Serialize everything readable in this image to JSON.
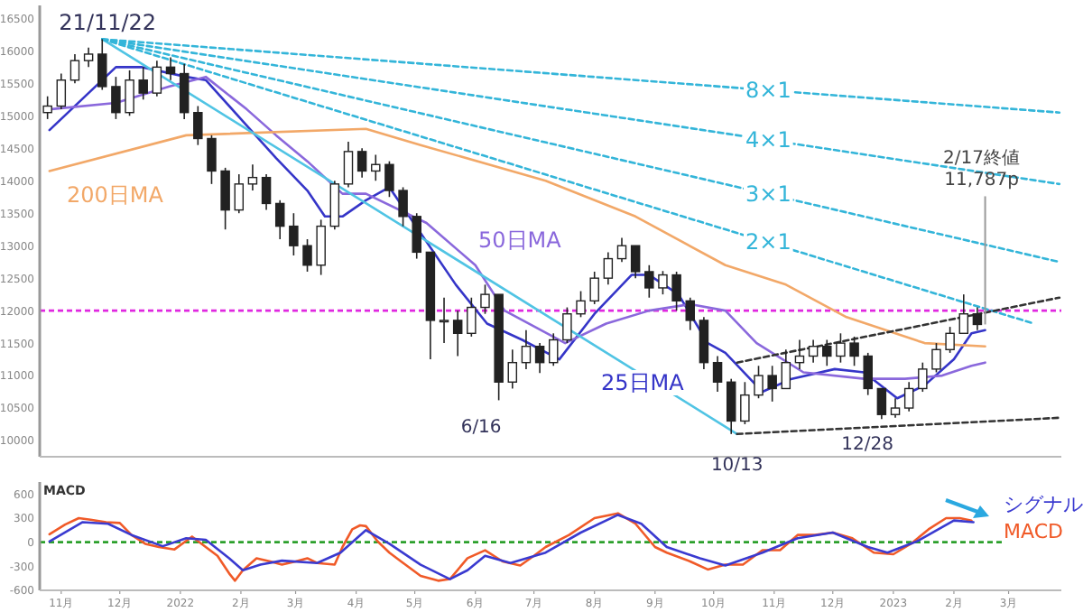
{
  "chart_data": [
    {
      "type": "candlestick",
      "x": [
        "2021-10-25",
        "2021-11-01",
        "2021-11-08",
        "2021-11-15",
        "2021-11-22",
        "2021-11-29",
        "2021-12-06",
        "2021-12-13",
        "2021-12-20",
        "2021-12-27",
        "2022-01-03",
        "2022-01-10",
        "2022-01-17",
        "2022-01-24",
        "2022-01-31",
        "2022-02-07",
        "2022-02-14",
        "2022-02-21",
        "2022-02-28",
        "2022-03-07",
        "2022-03-14",
        "2022-03-21",
        "2022-03-28",
        "2022-04-04",
        "2022-04-11",
        "2022-04-18",
        "2022-04-25",
        "2022-05-02",
        "2022-05-09",
        "2022-05-16",
        "2022-05-23",
        "2022-05-30",
        "2022-06-06",
        "2022-06-13",
        "2022-06-20",
        "2022-06-27",
        "2022-07-04",
        "2022-07-11",
        "2022-07-18",
        "2022-07-25",
        "2022-08-01",
        "2022-08-08",
        "2022-08-15",
        "2022-08-22",
        "2022-08-29",
        "2022-09-05",
        "2022-09-12",
        "2022-09-19",
        "2022-09-26",
        "2022-10-03",
        "2022-10-10",
        "2022-10-17",
        "2022-10-24",
        "2022-10-31",
        "2022-11-07",
        "2022-11-14",
        "2022-11-21",
        "2022-11-28",
        "2022-12-05",
        "2022-12-12",
        "2022-12-19",
        "2022-12-26",
        "2023-01-02",
        "2023-01-09",
        "2023-01-16",
        "2023-01-23",
        "2023-01-30",
        "2023-02-06",
        "2023-02-13"
      ],
      "ohlc": [
        [
          15050,
          15300,
          14950,
          15150
        ],
        [
          15150,
          15650,
          15100,
          15550
        ],
        [
          15550,
          15950,
          15500,
          15850
        ],
        [
          15850,
          16050,
          15750,
          15950
        ],
        [
          15950,
          16180,
          15400,
          15450
        ],
        [
          15450,
          15600,
          14950,
          15050
        ],
        [
          15050,
          15700,
          15000,
          15550
        ],
        [
          15550,
          15750,
          15250,
          15350
        ],
        [
          15350,
          15850,
          15300,
          15750
        ],
        [
          15750,
          15900,
          15550,
          15650
        ],
        [
          15650,
          15800,
          14950,
          15050
        ],
        [
          15050,
          15150,
          14550,
          14650
        ],
        [
          14650,
          14700,
          13950,
          14150
        ],
        [
          14150,
          14200,
          13250,
          13550
        ],
        [
          13550,
          14100,
          13500,
          13950
        ],
        [
          13950,
          14250,
          13850,
          14050
        ],
        [
          14050,
          14100,
          13550,
          13650
        ],
        [
          13650,
          13700,
          13100,
          13300
        ],
        [
          13300,
          13500,
          12850,
          13000
        ],
        [
          13000,
          13100,
          12600,
          12700
        ],
        [
          12700,
          13400,
          12550,
          13300
        ],
        [
          13300,
          14000,
          13250,
          13950
        ],
        [
          13950,
          14600,
          13900,
          14450
        ],
        [
          14450,
          14500,
          14050,
          14150
        ],
        [
          14150,
          14400,
          14000,
          14250
        ],
        [
          14250,
          14300,
          13750,
          13850
        ],
        [
          13850,
          13900,
          13300,
          13450
        ],
        [
          13450,
          13500,
          12800,
          12900
        ],
        [
          12900,
          12900,
          11250,
          11850
        ],
        [
          11850,
          12200,
          11500,
          11850
        ],
        [
          11850,
          12000,
          11300,
          11650
        ],
        [
          11650,
          12200,
          11600,
          12050
        ],
        [
          12050,
          12400,
          11950,
          12250
        ],
        [
          12250,
          12250,
          10620,
          10900
        ],
        [
          10900,
          11400,
          10800,
          11200
        ],
        [
          11200,
          11700,
          11100,
          11450
        ],
        [
          11450,
          11500,
          11040,
          11200
        ],
        [
          11200,
          11650,
          11150,
          11550
        ],
        [
          11550,
          12050,
          11500,
          11950
        ],
        [
          11950,
          12300,
          11900,
          12150
        ],
        [
          12150,
          12600,
          12100,
          12500
        ],
        [
          12500,
          12900,
          12400,
          12800
        ],
        [
          12800,
          13120,
          12750,
          13000
        ],
        [
          13000,
          13000,
          12500,
          12600
        ],
        [
          12600,
          12700,
          12200,
          12350
        ],
        [
          12350,
          12610,
          12250,
          12550
        ],
        [
          12550,
          12600,
          12000,
          12150
        ],
        [
          12150,
          12200,
          11700,
          11850
        ],
        [
          11850,
          11900,
          11100,
          11200
        ],
        [
          11200,
          11300,
          10750,
          10900
        ],
        [
          10900,
          10950,
          10100,
          10300
        ],
        [
          10300,
          10900,
          10250,
          10700
        ],
        [
          10700,
          11150,
          10650,
          11000
        ],
        [
          11000,
          11150,
          10600,
          10800
        ],
        [
          10800,
          11400,
          10800,
          11200
        ],
        [
          11200,
          11550,
          11100,
          11300
        ],
        [
          11300,
          11550,
          11200,
          11450
        ],
        [
          11450,
          11550,
          11150,
          11300
        ],
        [
          11300,
          11650,
          11200,
          11500
        ],
        [
          11500,
          11600,
          11150,
          11300
        ],
        [
          11300,
          11350,
          10700,
          10800
        ],
        [
          10800,
          10800,
          10330,
          10400
        ],
        [
          10400,
          10650,
          10350,
          10500
        ],
        [
          10500,
          10900,
          10450,
          10800
        ],
        [
          10800,
          11200,
          10750,
          11100
        ],
        [
          11100,
          11500,
          11050,
          11400
        ],
        [
          11400,
          11750,
          11350,
          11650
        ],
        [
          11650,
          12250,
          11650,
          11950
        ],
        [
          11950,
          12050,
          11700,
          11787
        ]
      ],
      "series": [
        {
          "type": "line",
          "name": "25日MA",
          "color": "#3535c8",
          "line_style": "solid",
          "x": [
            "2021-10-26",
            "2021-11-29",
            "2021-12-12",
            "2022-01-04",
            "2022-01-14",
            "2022-02-04",
            "2022-02-19",
            "2022-03-07",
            "2022-03-16",
            "2022-03-25",
            "2022-04-06",
            "2022-04-18",
            "2022-05-22",
            "2022-06-07",
            "2022-06-25",
            "2022-07-14",
            "2022-08-01",
            "2022-08-20",
            "2022-08-29",
            "2022-09-13",
            "2022-09-28",
            "2022-10-07",
            "2022-10-26",
            "2022-11-10",
            "2022-12-02",
            "2022-12-17",
            "2023-01-03",
            "2023-01-17",
            "2023-02-01",
            "2023-02-10",
            "2023-02-17"
          ],
          "values": [
            14780,
            15750,
            15750,
            15600,
            15550,
            14850,
            14350,
            13850,
            13450,
            13450,
            13700,
            13900,
            12400,
            11800,
            11550,
            11250,
            11950,
            12550,
            12550,
            12250,
            11500,
            11350,
            10750,
            10950,
            11100,
            11050,
            10650,
            10850,
            11250,
            11650,
            11700
          ]
        },
        {
          "type": "line",
          "name": "50日MA",
          "color": "#8a68dc",
          "line_style": "solid",
          "x": [
            "2021-10-26",
            "2021-11-29",
            "2021-12-26",
            "2022-01-14",
            "2022-02-04",
            "2022-02-19",
            "2022-03-07",
            "2022-03-25",
            "2022-04-06",
            "2022-05-07",
            "2022-06-01",
            "2022-06-16",
            "2022-07-17",
            "2022-08-07",
            "2022-08-29",
            "2022-09-19",
            "2022-10-07",
            "2022-10-23",
            "2022-11-16",
            "2022-12-17",
            "2023-01-07",
            "2023-01-26",
            "2023-02-10",
            "2023-02-17"
          ],
          "values": [
            15100,
            15200,
            15450,
            15600,
            15100,
            14700,
            14300,
            13800,
            13800,
            13350,
            12700,
            12000,
            11500,
            11800,
            12000,
            12100,
            12000,
            11500,
            11050,
            10950,
            10950,
            11000,
            11150,
            11200
          ]
        },
        {
          "type": "line",
          "name": "200日MA",
          "color": "#f2a868",
          "line_style": "solid",
          "x": [
            "2021-10-26",
            "2022-01-04",
            "2022-04-06",
            "2022-05-04",
            "2022-07-07",
            "2022-08-22",
            "2022-10-07",
            "2022-11-07",
            "2022-12-08",
            "2023-01-17",
            "2023-02-17"
          ],
          "values": [
            14150,
            14700,
            14800,
            14550,
            14000,
            13450,
            12700,
            12400,
            11900,
            11500,
            11450
          ]
        },
        {
          "type": "line",
          "color": "#50c4e4",
          "line_style": "solid",
          "x": [
            "2021-11-22",
            "2022-10-13"
          ],
          "values": [
            16180,
            10100
          ]
        },
        {
          "type": "line",
          "name": "2×1",
          "color": "#33b5d9",
          "line_style": "dashed",
          "x": [
            "2021-11-22",
            "2023-03-14"
          ],
          "values": [
            16180,
            11800
          ]
        },
        {
          "type": "line",
          "name": "3×1",
          "color": "#33b5d9",
          "line_style": "dashed",
          "x": [
            "2021-11-22",
            "2023-03-27"
          ],
          "values": [
            16180,
            12750
          ]
        },
        {
          "type": "line",
          "name": "4×1",
          "color": "#33b5d9",
          "line_style": "dashed",
          "x": [
            "2021-11-22",
            "2023-03-27"
          ],
          "values": [
            16180,
            13950
          ]
        },
        {
          "type": "line",
          "name": "8×1",
          "color": "#33b5d9",
          "line_style": "dashed",
          "x": [
            "2021-11-22",
            "2023-03-27"
          ],
          "values": [
            16180,
            15050
          ]
        },
        {
          "type": "line",
          "color": "#333333",
          "line_style": "dashed",
          "x": [
            "2022-10-13",
            "2023-03-27"
          ],
          "values": [
            11200,
            12200
          ]
        },
        {
          "type": "line",
          "color": "#333333",
          "line_style": "dashed",
          "x": [
            "2022-10-13",
            "2023-03-27"
          ],
          "values": [
            10100,
            10350
          ]
        }
      ],
      "ref_lines": [
        {
          "axis": "y",
          "value": 12000,
          "color": "#e028e0",
          "line_style": "dashed"
        }
      ],
      "annotations": [
        {
          "text": "21/11/22",
          "x": "2021-11-22",
          "y": 16180
        },
        {
          "text": "6/16",
          "x": "2022-06-16",
          "y": 10620
        },
        {
          "text": "10/13",
          "x": "2022-10-13",
          "y": 10100
        },
        {
          "text": "12/28",
          "x": "2022-12-28",
          "y": 10330
        },
        {
          "text": "2/17終値\n11,787p",
          "x": "2023-02-17",
          "y": 11787
        }
      ],
      "xlim": [
        "2021-10-21",
        "2023-03-28"
      ],
      "ylim": [
        9750,
        16700
      ],
      "yticks": [
        10000,
        10500,
        11000,
        11500,
        12000,
        12500,
        13000,
        13500,
        14000,
        14500,
        15000,
        15500,
        16000,
        16500
      ],
      "tick_labels": "y"
    },
    {
      "type": "line",
      "title": "MACD",
      "series": [
        {
          "name": "MACD",
          "color": "#f05a28",
          "x": [
            "2021-10-26",
            "2021-11-03",
            "2021-11-10",
            "2021-11-16",
            "2021-11-24",
            "2021-12-01",
            "2021-12-07",
            "2021-12-14",
            "2021-12-21",
            "2021-12-29",
            "2022-01-07",
            "2022-01-14",
            "2022-01-20",
            "2022-01-26",
            "2022-01-29",
            "2022-02-02",
            "2022-02-09",
            "2022-02-16",
            "2022-02-22",
            "2022-03-01",
            "2022-03-07",
            "2022-03-12",
            "2022-03-21",
            "2022-03-25",
            "2022-03-30",
            "2022-04-03",
            "2022-04-06",
            "2022-04-12",
            "2022-04-18",
            "2022-04-24",
            "2022-05-04",
            "2022-05-13",
            "2022-05-19",
            "2022-05-28",
            "2022-06-06",
            "2022-06-15",
            "2022-06-24",
            "2022-07-01",
            "2022-07-07",
            "2022-07-19",
            "2022-08-01",
            "2022-08-13",
            "2022-08-22",
            "2022-09-01",
            "2022-09-07",
            "2022-09-19",
            "2022-09-28",
            "2022-10-07",
            "2022-10-16",
            "2022-10-26",
            "2022-11-04",
            "2022-11-13",
            "2022-11-22",
            "2022-12-01",
            "2022-12-11",
            "2022-12-22",
            "2023-01-01",
            "2023-01-10",
            "2023-01-19",
            "2023-01-28",
            "2023-02-04",
            "2023-02-10"
          ],
          "values": [
            100,
            220,
            300,
            280,
            250,
            240,
            90,
            -20,
            -60,
            -90,
            70,
            -60,
            -170,
            -390,
            -480,
            -350,
            -200,
            -240,
            -280,
            -240,
            -200,
            -260,
            -280,
            -60,
            160,
            210,
            200,
            10,
            -130,
            -240,
            -420,
            -480,
            -460,
            -200,
            -100,
            -240,
            -290,
            -170,
            -60,
            90,
            300,
            360,
            230,
            -60,
            -130,
            -240,
            -340,
            -280,
            -280,
            -100,
            -100,
            90,
            90,
            120,
            50,
            -130,
            -150,
            -20,
            160,
            300,
            300,
            270
          ]
        },
        {
          "name": "シグナル",
          "color": "#3a3ad0",
          "x": [
            "2021-10-26",
            "2021-11-12",
            "2021-11-25",
            "2021-12-07",
            "2021-12-23",
            "2022-01-04",
            "2022-01-14",
            "2022-01-26",
            "2022-02-02",
            "2022-02-11",
            "2022-02-22",
            "2022-03-12",
            "2022-03-24",
            "2022-04-06",
            "2022-04-18",
            "2022-05-04",
            "2022-05-19",
            "2022-05-28",
            "2022-06-06",
            "2022-06-19",
            "2022-07-07",
            "2022-07-25",
            "2022-08-13",
            "2022-08-25",
            "2022-09-07",
            "2022-09-24",
            "2022-10-07",
            "2022-10-26",
            "2022-11-13",
            "2022-12-01",
            "2022-12-19",
            "2022-12-29",
            "2023-01-13",
            "2023-02-01",
            "2023-02-11"
          ],
          "values": [
            10,
            250,
            230,
            90,
            -50,
            50,
            30,
            -200,
            -350,
            -280,
            -230,
            -260,
            -130,
            150,
            -20,
            -280,
            -460,
            -350,
            -170,
            -260,
            -130,
            120,
            340,
            230,
            -60,
            -200,
            -290,
            -130,
            50,
            120,
            -60,
            -130,
            10,
            270,
            250
          ]
        }
      ],
      "ref_lines": [
        {
          "axis": "y",
          "value": 0,
          "color": "#2ca02c",
          "line_style": "dashed"
        }
      ],
      "xlim": [
        "2021-10-21",
        "2023-03-28"
      ],
      "ylim": [
        -600,
        750
      ],
      "yticks": [
        -600,
        -300,
        0,
        300,
        600
      ],
      "xticks": [
        {
          "value": "2021-11-01",
          "label": "11月"
        },
        {
          "value": "2021-12-01",
          "label": "12月"
        },
        {
          "value": "2022-01-01",
          "label": "2022"
        },
        {
          "value": "2022-02-01",
          "label": "2月"
        },
        {
          "value": "2022-03-01",
          "label": "3月"
        },
        {
          "value": "2022-04-01",
          "label": "4月"
        },
        {
          "value": "2022-05-01",
          "label": "5月"
        },
        {
          "value": "2022-06-01",
          "label": "6月"
        },
        {
          "value": "2022-07-01",
          "label": "7月"
        },
        {
          "value": "2022-08-01",
          "label": "8月"
        },
        {
          "value": "2022-09-01",
          "label": "9月"
        },
        {
          "value": "2022-10-01",
          "label": "10月"
        },
        {
          "value": "2022-11-01",
          "label": "11月"
        },
        {
          "value": "2022-12-01",
          "label": "12月"
        },
        {
          "value": "2023-01-01",
          "label": "2023"
        },
        {
          "value": "2023-02-01",
          "label": "2月"
        },
        {
          "value": "2023-03-01",
          "label": "3月"
        }
      ]
    }
  ]
}
